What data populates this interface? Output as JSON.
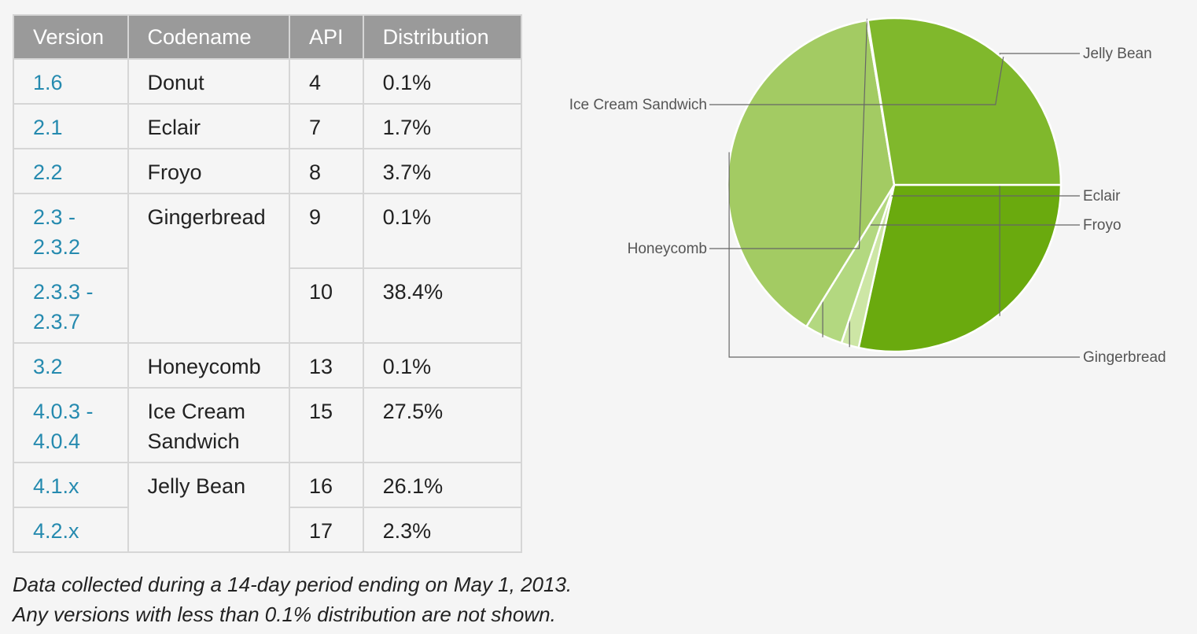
{
  "table": {
    "headers": [
      "Version",
      "Codename",
      "API",
      "Distribution"
    ],
    "rows": [
      {
        "version": "1.6",
        "codename": "Donut",
        "api": "4",
        "distribution": "0.1%"
      },
      {
        "version": "2.1",
        "codename": "Eclair",
        "api": "7",
        "distribution": "1.7%"
      },
      {
        "version": "2.2",
        "codename": "Froyo",
        "api": "8",
        "distribution": "3.7%"
      },
      {
        "version": "2.3 - 2.3.2",
        "codename": "Gingerbread",
        "api": "9",
        "distribution": "0.1%"
      },
      {
        "version": "2.3.3 - 2.3.7",
        "codename": "",
        "api": "10",
        "distribution": "38.4%"
      },
      {
        "version": "3.2",
        "codename": "Honeycomb",
        "api": "13",
        "distribution": "0.1%"
      },
      {
        "version": "4.0.3 - 4.0.4",
        "codename": "Ice Cream Sandwich",
        "api": "15",
        "distribution": "27.5%"
      },
      {
        "version": "4.1.x",
        "codename": "Jelly Bean",
        "api": "16",
        "distribution": "26.1%"
      },
      {
        "version": "4.2.x",
        "codename": "",
        "api": "17",
        "distribution": "2.3%"
      }
    ]
  },
  "footnote": {
    "line1": "Data collected during a 14-day period ending on May 1, 2013.",
    "line2": "Any versions with less than 0.1% distribution are not shown."
  },
  "chart_data": {
    "type": "pie",
    "title": "",
    "slices": [
      {
        "label": "Jelly Bean",
        "value": 28.4,
        "color": "#6aaa0e"
      },
      {
        "label": "Eclair",
        "value": 1.7,
        "color": "#cde6a5"
      },
      {
        "label": "Froyo",
        "value": 3.7,
        "color": "#b3d880"
      },
      {
        "label": "Gingerbread",
        "value": 38.5,
        "color": "#a3cb63"
      },
      {
        "label": "Honeycomb",
        "value": 0.1,
        "color": "#97c354"
      },
      {
        "label": "Ice Cream Sandwich",
        "value": 27.5,
        "color": "#80b82c"
      }
    ],
    "start_angle_deg": 90,
    "direction": "clockwise",
    "legend": "callout labels around pie"
  },
  "colors": {
    "header_bg": "#9a9a9a",
    "link": "#258aaf",
    "border": "#d6d6d6"
  }
}
